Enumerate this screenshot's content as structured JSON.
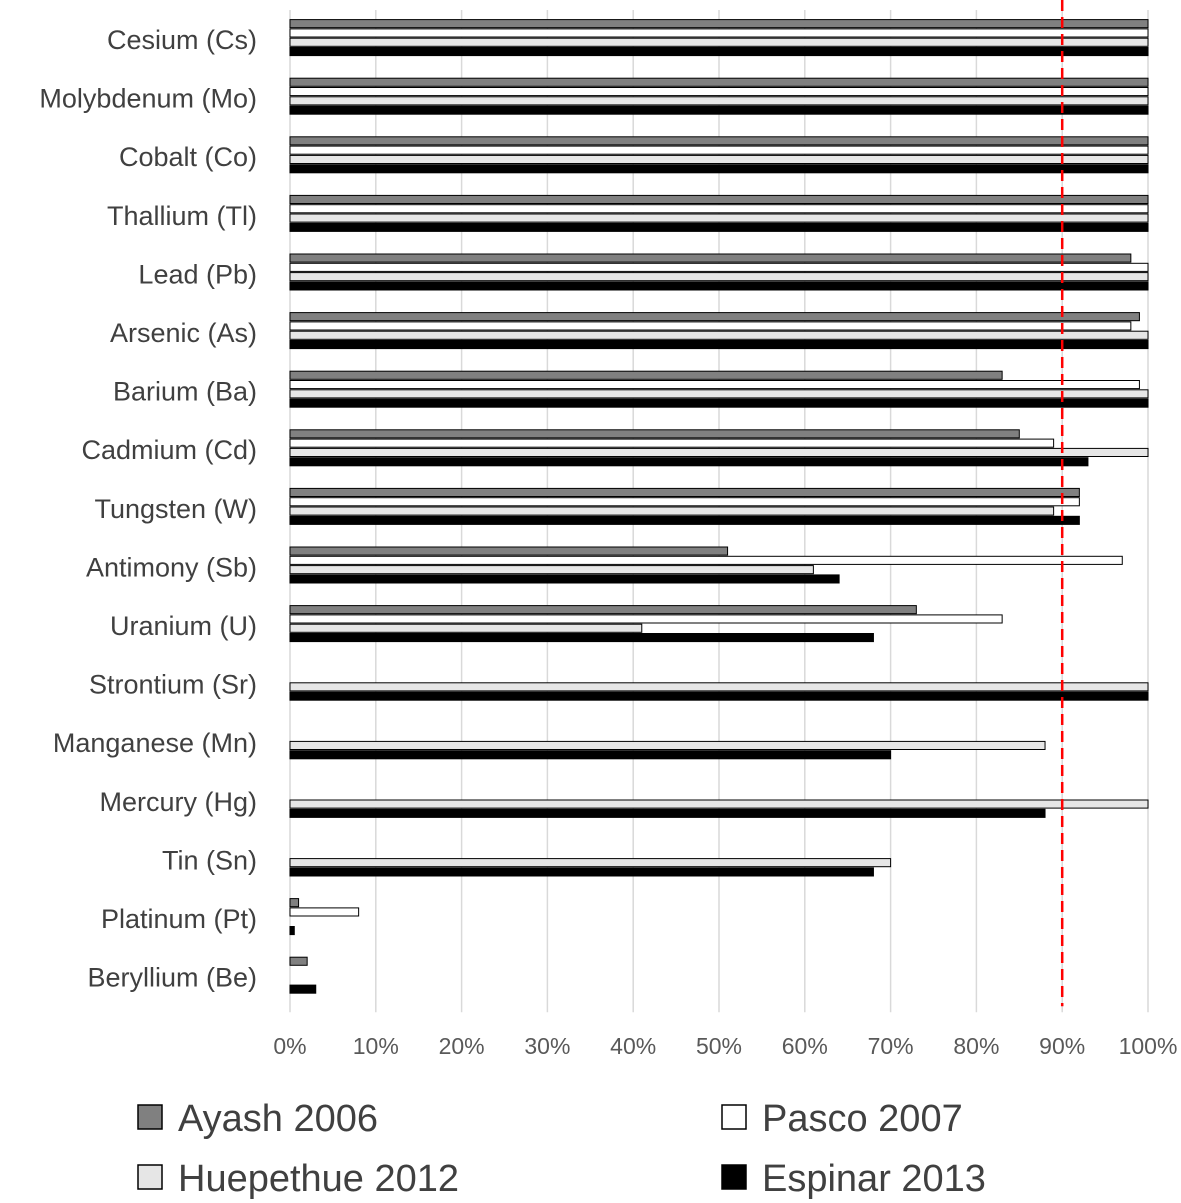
{
  "chart_data": {
    "type": "bar",
    "orientation": "horizontal",
    "categories": [
      "Cesium (Cs)",
      "Molybdenum (Mo)",
      "Cobalt (Co)",
      "Thallium (Tl)",
      "Lead (Pb)",
      "Arsenic (As)",
      "Barium (Ba)",
      "Cadmium (Cd)",
      "Tungsten (W)",
      "Antimony (Sb)",
      "Uranium (U)",
      "Strontium (Sr)",
      "Manganese (Mn)",
      "Mercury (Hg)",
      "Tin (Sn)",
      "Platinum (Pt)",
      "Beryllium (Be)"
    ],
    "series": [
      {
        "name": "Ayash 2006",
        "color": "#808080",
        "values": [
          100,
          100,
          100,
          100,
          98,
          99,
          83,
          85,
          92,
          51,
          73,
          null,
          null,
          null,
          null,
          1,
          2
        ]
      },
      {
        "name": "Pasco 2007",
        "color": "#ffffff",
        "values": [
          100,
          100,
          100,
          100,
          100,
          98,
          99,
          89,
          92,
          97,
          83,
          null,
          null,
          null,
          null,
          8,
          null
        ]
      },
      {
        "name": "Huepethue 2012",
        "color": "#e6e6e6",
        "values": [
          100,
          100,
          100,
          100,
          100,
          100,
          100,
          100,
          89,
          61,
          41,
          100,
          88,
          100,
          70,
          null,
          null
        ]
      },
      {
        "name": "Espinar 2013",
        "color": "#000000",
        "values": [
          100,
          100,
          100,
          100,
          100,
          100,
          100,
          93,
          92,
          64,
          68,
          100,
          70,
          88,
          68,
          0.5,
          3
        ]
      }
    ],
    "xlim": [
      0,
      100
    ],
    "x_ticks": [
      "0%",
      "10%",
      "20%",
      "30%",
      "40%",
      "50%",
      "60%",
      "70%",
      "80%",
      "90%",
      "100%"
    ],
    "reference_line": {
      "value": 90,
      "color": "#ff0000",
      "style": "dashed"
    },
    "grid": true,
    "legend_position": "bottom",
    "title": "",
    "xlabel": "",
    "ylabel": ""
  }
}
